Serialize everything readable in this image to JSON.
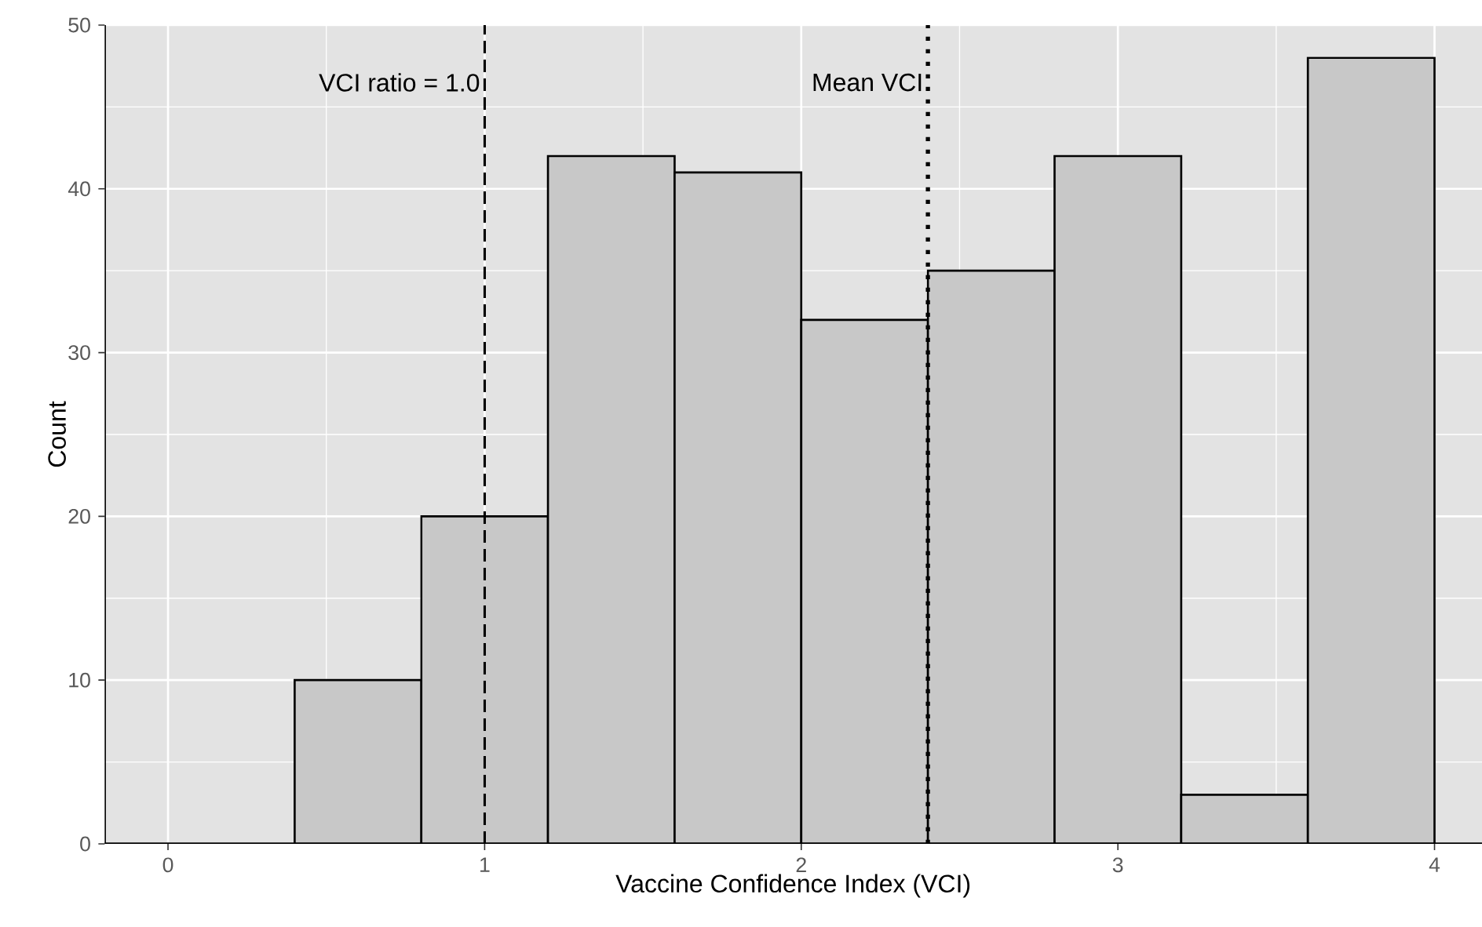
{
  "chart_data": {
    "type": "histogram",
    "xlabel": "Vaccine Confidence Index (VCI)",
    "ylabel": "Count",
    "bins": [
      0.4,
      0.8,
      1.2,
      1.6,
      2.0,
      2.4,
      2.8,
      3.2,
      3.6,
      4.0
    ],
    "values": [
      10,
      20,
      42,
      41,
      32,
      35,
      42,
      3,
      48
    ],
    "color": "#c8c8c8",
    "xlim": [
      -0.2,
      4.15
    ],
    "ylim": [
      0,
      50
    ],
    "xticks": [
      0,
      1,
      2,
      3,
      4
    ],
    "yticks": [
      0,
      10,
      20,
      30,
      40,
      50
    ],
    "grid": true,
    "ref_lines": [
      {
        "axis": "x",
        "value": 1.0,
        "label": "VCI ratio = 1.0",
        "line_style": "dashed"
      },
      {
        "axis": "x",
        "value": 2.4,
        "label": "Mean VCI",
        "line_style": "dotted"
      }
    ]
  }
}
